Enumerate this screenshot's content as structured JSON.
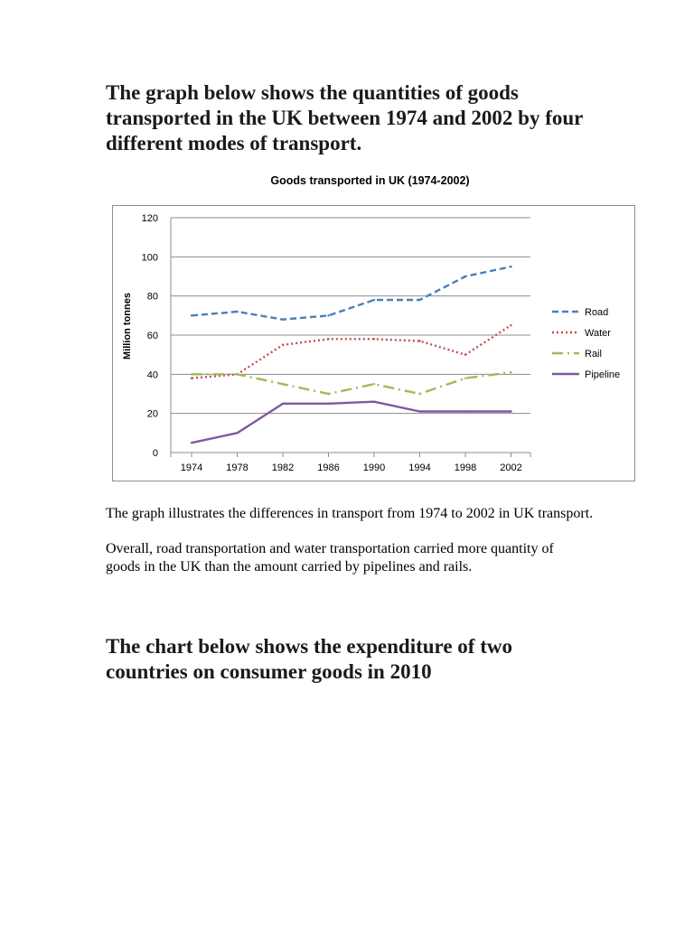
{
  "heading_1": "The graph below shows the quantities of goods transported in the UK between 1974 and 2002 by four different modes of transport.",
  "chart_data": {
    "type": "line",
    "title": "Goods transported in  UK (1974-2002)",
    "xlabel": "",
    "ylabel": "Million tonnes",
    "x": [
      1974,
      1978,
      1982,
      1986,
      1990,
      1994,
      1998,
      2002
    ],
    "x_tick_labels": [
      "1974",
      "1978",
      "1982",
      "1986",
      "1990",
      "1994",
      "1998",
      "2002"
    ],
    "ylim": [
      0,
      120
    ],
    "y_ticks": [
      0,
      20,
      40,
      60,
      80,
      100,
      120
    ],
    "grid": true,
    "legend_position": "right",
    "series": [
      {
        "name": "Road",
        "color": "#4a7ebb",
        "style": "dashed",
        "values": [
          70,
          72,
          68,
          70,
          78,
          78,
          90,
          95
        ]
      },
      {
        "name": "Water",
        "color": "#c0504d",
        "style": "dotted",
        "values": [
          38,
          40,
          55,
          58,
          58,
          57,
          50,
          65
        ]
      },
      {
        "name": "Rail",
        "color": "#9bbb59",
        "style": "dash-dot",
        "values": [
          40,
          40,
          35,
          30,
          35,
          30,
          38,
          41
        ]
      },
      {
        "name": "Pipeline",
        "color": "#7e57a1",
        "style": "solid",
        "values": [
          5,
          10,
          25,
          25,
          26,
          21,
          21,
          21
        ]
      }
    ]
  },
  "para_1": "The graph illustrates the differences in transport from 1974 to 2002 in UK transport.",
  "para_2": "Overall, road transportation and water transportation carried more quantity of goods in the UK than the amount carried by pipelines and rails.",
  "heading_2": "The chart below shows the expenditure of two countries on consumer goods in 2010"
}
